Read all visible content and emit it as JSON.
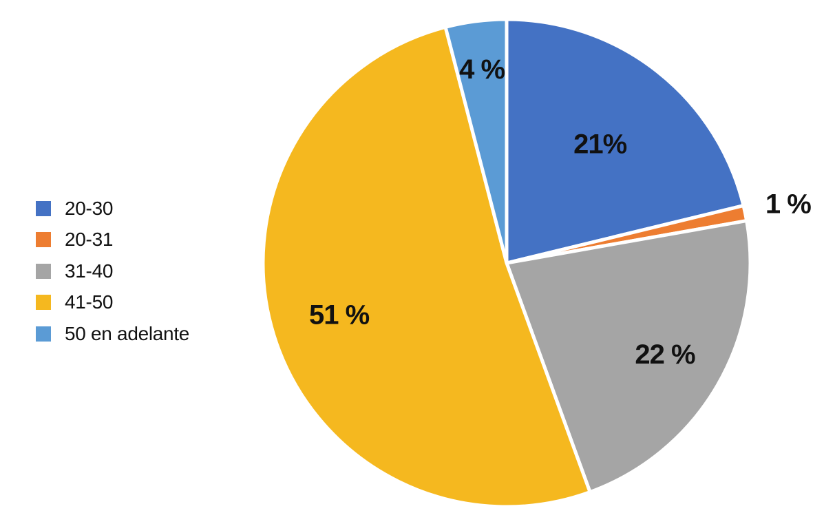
{
  "chart_data": {
    "type": "pie",
    "title": "",
    "categories": [
      "20-30",
      "20-31",
      "31-40",
      "41-50",
      "50 en adelante"
    ],
    "values": [
      21,
      1,
      22,
      51,
      4
    ],
    "value_labels": [
      "21%",
      "1 %",
      "22 %",
      "51 %",
      "4 %"
    ],
    "colors": [
      "#4472c4",
      "#ed7d31",
      "#a5a5a5",
      "#f5b81f",
      "#5b9bd5"
    ],
    "legend_position": "left",
    "start_angle": "12 o'clock, clockwise"
  }
}
